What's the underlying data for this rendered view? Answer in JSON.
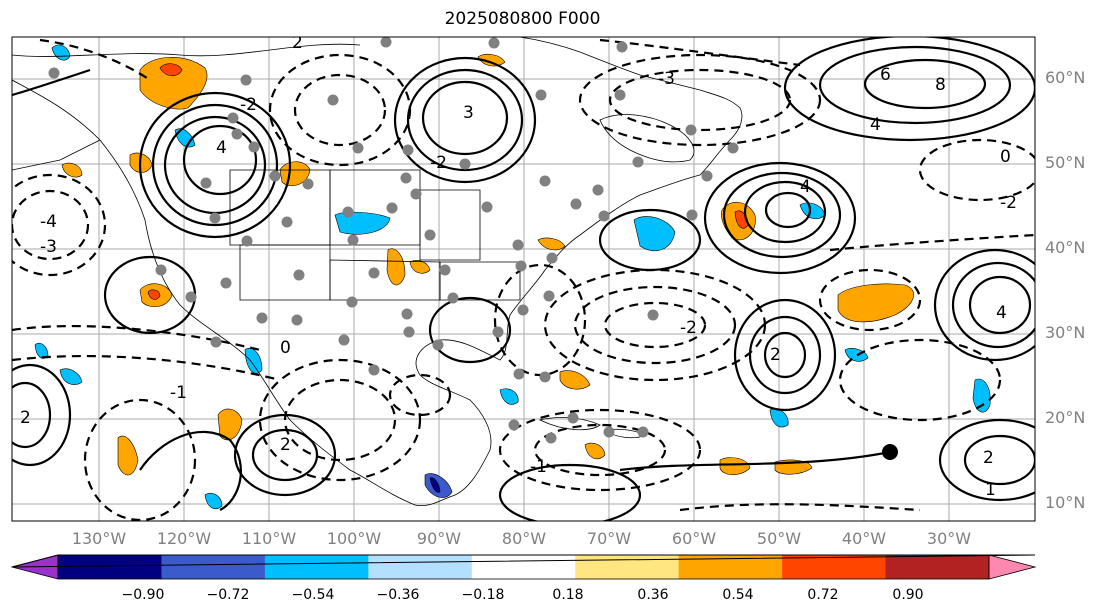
{
  "title": "2025080800 F000",
  "lon_labels": [
    "130°W",
    "120°W",
    "110°W",
    "100°W",
    "90°W",
    "80°W",
    "70°W",
    "60°W",
    "50°W",
    "40°W",
    "30°W"
  ],
  "lat_labels": [
    "60°N",
    "50°N",
    "40°N",
    "30°N",
    "20°N",
    "10°N"
  ],
  "colorbar": {
    "ticks": [
      "−0.90",
      "−0.72",
      "−0.54",
      "−0.36",
      "−0.18",
      "0.18",
      "0.36",
      "0.54",
      "0.72",
      "0.90"
    ],
    "colors": [
      "#9932cc",
      "#000080",
      "#3b5bcc",
      "#00bfff",
      "#b3e0ff",
      "#ffffff",
      "#ffe680",
      "#ffa500",
      "#ff4500",
      "#b22222",
      "#ff88b0"
    ]
  },
  "contour_labels": [
    "2",
    "-2",
    "3",
    "-3",
    "4",
    "-4",
    "6",
    "8",
    "-1",
    "1",
    "0"
  ]
}
